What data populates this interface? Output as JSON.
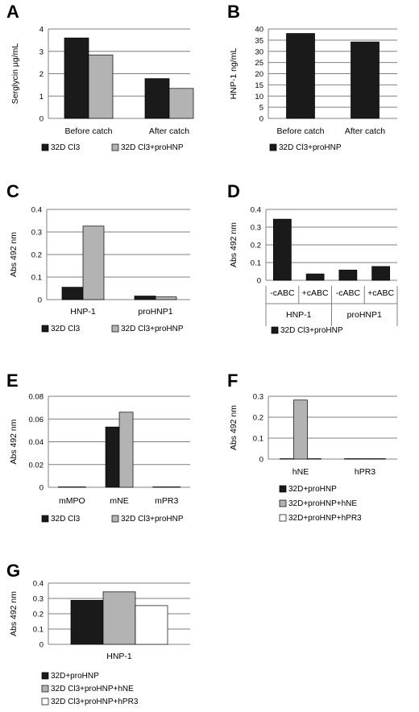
{
  "colors": {
    "dark": "#1a1a1a",
    "light": "#b3b3b3",
    "white": "#ffffff",
    "grid": "#7f7f7f",
    "axis": "#808080"
  },
  "chart_data": [
    {
      "id": "A",
      "panel_label": "A",
      "type": "bar",
      "ylabel": "Serglycin µg/mL",
      "ylim": [
        0,
        4
      ],
      "yticks": [
        "0",
        "1",
        "2",
        "3",
        "4"
      ],
      "grid": true,
      "categories": [
        "Before catch",
        "After catch"
      ],
      "series": [
        {
          "name": "32D Cl3",
          "color": "dark",
          "values": [
            3.6,
            1.78
          ]
        },
        {
          "name": "32D Cl3+proHNP",
          "color": "light",
          "values": [
            2.84,
            1.34
          ]
        }
      ],
      "legend_position": "bottom"
    },
    {
      "id": "B",
      "panel_label": "B",
      "type": "bar",
      "ylabel": "HNP-1 ng/mL",
      "ylim": [
        0,
        40
      ],
      "yticks": [
        "0",
        "5",
        "10",
        "15",
        "20",
        "25",
        "30",
        "35",
        "40"
      ],
      "grid": true,
      "categories": [
        "Before catch",
        "After catch"
      ],
      "series": [
        {
          "name": "32D Cl3+proHNP",
          "color": "dark",
          "values": [
            38,
            34.2
          ]
        }
      ],
      "legend_position": "bottom"
    },
    {
      "id": "C",
      "panel_label": "C",
      "type": "bar",
      "ylabel": "Abs 492 nm",
      "ylim": [
        0,
        0.4
      ],
      "yticks": [
        "0",
        "0.1",
        "0.2",
        "0.3",
        "0.4"
      ],
      "grid": true,
      "categories": [
        "HNP-1",
        "proHNP1"
      ],
      "series": [
        {
          "name": "32D Cl3",
          "color": "dark",
          "values": [
            0.055,
            0.016
          ]
        },
        {
          "name": "32D Cl3+proHNP",
          "color": "light",
          "values": [
            0.326,
            0.012
          ]
        }
      ],
      "legend_position": "bottom"
    },
    {
      "id": "D",
      "panel_label": "D",
      "type": "bar",
      "ylabel": "Abs 492 nm",
      "ylim": [
        0,
        0.4
      ],
      "yticks": [
        "0",
        "0.1",
        "0.2",
        "0.3",
        "0.4"
      ],
      "grid": true,
      "categories": [
        "-cABC",
        "+cABC",
        "-cABC",
        "+cABC"
      ],
      "groups": [
        "HNP-1",
        "proHNP1"
      ],
      "series": [
        {
          "name": "32D Cl3+proHNP",
          "color": "dark",
          "values": [
            0.345,
            0.036,
            0.058,
            0.078
          ]
        }
      ],
      "legend_position": "bottom"
    },
    {
      "id": "E",
      "panel_label": "E",
      "type": "bar",
      "ylabel": "Abs 492 nm",
      "ylim": [
        0,
        0.08
      ],
      "yticks": [
        "0",
        "0.02",
        "0.04",
        "0.06",
        "0.08"
      ],
      "grid": true,
      "categories": [
        "mMPO",
        "mNE",
        "mPR3"
      ],
      "series": [
        {
          "name": "32D Cl3",
          "color": "dark",
          "values": [
            0,
            0.053,
            0
          ]
        },
        {
          "name": "32D Cl3+proHNP",
          "color": "light",
          "values": [
            0,
            0.066,
            0
          ]
        }
      ],
      "legend_position": "bottom"
    },
    {
      "id": "F",
      "panel_label": "F",
      "type": "bar",
      "ylabel": "Abs 492 nm",
      "ylim": [
        0,
        0.3
      ],
      "yticks": [
        "0",
        "0.1",
        "0.2",
        "0.3"
      ],
      "grid": true,
      "categories": [
        "hNE",
        "hPR3"
      ],
      "series": [
        {
          "name": "32D+proHNP",
          "color": "dark",
          "values": [
            0.001,
            0.002
          ]
        },
        {
          "name": "32D+proHNP+hNE",
          "color": "light",
          "values": [
            0.282,
            0.001
          ]
        },
        {
          "name": "32D+proHNP+hPR3",
          "color": "white",
          "values": [
            0.001,
            0.001
          ]
        }
      ],
      "legend_position": "bottom"
    },
    {
      "id": "G",
      "panel_label": "G",
      "type": "bar",
      "ylabel": "Abs 492 nm",
      "ylim": [
        0,
        0.4
      ],
      "yticks": [
        "0",
        "0.1",
        "0.2",
        "0.3",
        "0.4"
      ],
      "grid": true,
      "categories": [
        "HNP-1"
      ],
      "series": [
        {
          "name": "32D+proHNP",
          "color": "dark",
          "values": [
            0.288
          ]
        },
        {
          "name": "32D Cl3+proHNP+hNE",
          "color": "light",
          "values": [
            0.343
          ]
        },
        {
          "name": "32D Cl3+proHNP+hPR3",
          "color": "white",
          "values": [
            0.253
          ]
        }
      ],
      "legend_position": "bottom"
    }
  ]
}
